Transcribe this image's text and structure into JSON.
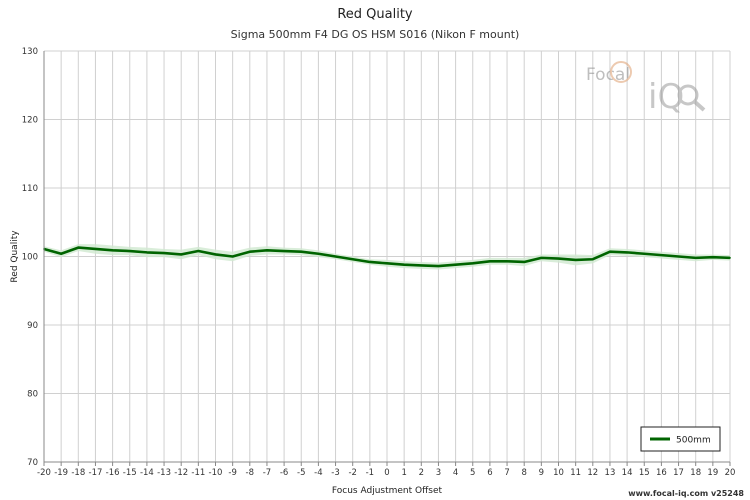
{
  "chart_data": {
    "type": "line",
    "title": "Red Quality",
    "subtitle": "Sigma 500mm F4 DG OS HSM S016 (Nikon F mount)",
    "xlabel": "Focus Adjustment Offset",
    "ylabel": "Red Quality",
    "xlim": [
      -20,
      20
    ],
    "ylim": [
      70,
      130
    ],
    "yticks": [
      70,
      80,
      90,
      100,
      110,
      120,
      130
    ],
    "xticks": [
      -20,
      -19,
      -18,
      -17,
      -16,
      -15,
      -14,
      -13,
      -12,
      -11,
      -10,
      -9,
      -8,
      -7,
      -6,
      -5,
      -4,
      -3,
      -2,
      -1,
      0,
      1,
      2,
      3,
      4,
      5,
      6,
      7,
      8,
      9,
      10,
      11,
      12,
      13,
      14,
      15,
      16,
      17,
      18,
      19,
      20
    ],
    "grid": true,
    "legend_position": "bottom-right",
    "series": [
      {
        "name": "500mm",
        "color": "#006400",
        "band_color": "#cfe8cf",
        "x": [
          -20,
          -19,
          -18,
          -17,
          -16,
          -15,
          -14,
          -13,
          -12,
          -11,
          -10,
          -9,
          -8,
          -7,
          -6,
          -5,
          -4,
          -3,
          -2,
          -1,
          0,
          1,
          2,
          3,
          4,
          5,
          6,
          7,
          8,
          9,
          10,
          11,
          12,
          13,
          14,
          15,
          16,
          17,
          18,
          19,
          20
        ],
        "y": [
          101.1,
          100.4,
          101.3,
          101.1,
          100.9,
          100.8,
          100.6,
          100.5,
          100.3,
          100.8,
          100.3,
          100.0,
          100.7,
          100.9,
          100.8,
          100.7,
          100.4,
          100.0,
          99.6,
          99.2,
          99.0,
          98.8,
          98.7,
          98.6,
          98.8,
          99.0,
          99.3,
          99.3,
          99.2,
          99.8,
          99.7,
          99.5,
          99.6,
          100.7,
          100.6,
          100.4,
          100.2,
          100.0,
          99.8,
          99.9,
          99.8
        ],
        "band_upper": [
          101.5,
          100.9,
          101.8,
          101.8,
          101.6,
          101.4,
          101.3,
          101.1,
          101.0,
          101.4,
          101.0,
          100.7,
          101.3,
          101.5,
          101.3,
          101.2,
          100.9,
          100.4,
          100.0,
          99.6,
          99.5,
          99.3,
          99.2,
          99.1,
          99.3,
          99.5,
          99.8,
          99.8,
          99.8,
          100.3,
          100.3,
          100.3,
          100.2,
          101.2,
          101.1,
          100.9,
          100.7,
          100.5,
          100.3,
          100.3,
          100.2
        ],
        "band_lower": [
          100.7,
          99.9,
          100.8,
          100.4,
          100.2,
          100.2,
          99.9,
          99.9,
          99.6,
          100.2,
          99.6,
          99.3,
          100.1,
          100.3,
          100.3,
          100.2,
          99.9,
          99.6,
          99.2,
          98.8,
          98.5,
          98.3,
          98.2,
          98.1,
          98.3,
          98.5,
          98.8,
          98.8,
          98.6,
          99.3,
          99.1,
          98.7,
          99.0,
          100.2,
          100.1,
          99.9,
          99.7,
          99.5,
          99.3,
          99.5,
          99.4
        ]
      }
    ]
  },
  "logo": {
    "text_top": "Focal",
    "text_bottom": "iQ"
  },
  "footer": {
    "text": "www.focal-iq.com v25248"
  }
}
